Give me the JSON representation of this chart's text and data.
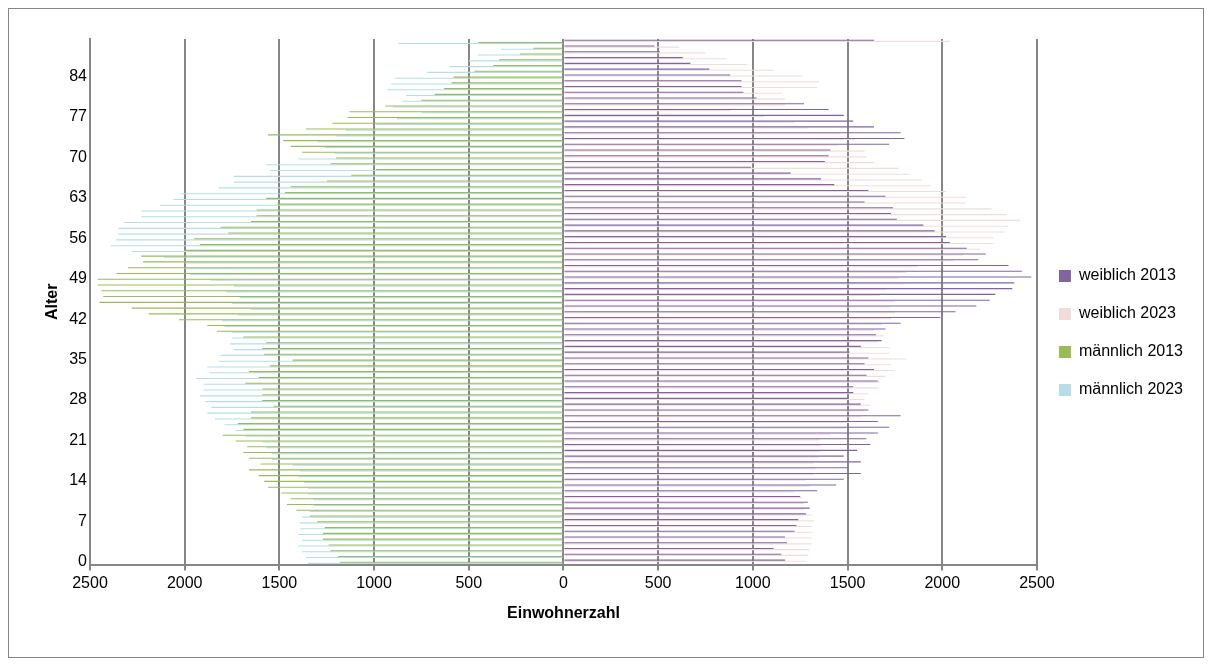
{
  "chart_data": {
    "type": "bar",
    "orientation": "horizontal",
    "xlabel": "Einwohnerzahl",
    "ylabel": "Alter",
    "categories": [
      null,
      null,
      null,
      null,
      null,
      null,
      "84",
      null,
      null,
      null,
      null,
      null,
      null,
      "77",
      null,
      null,
      null,
      null,
      null,
      null,
      "70",
      null,
      null,
      null,
      null,
      null,
      null,
      "63",
      null,
      null,
      null,
      null,
      null,
      null,
      "56",
      null,
      null,
      null,
      null,
      null,
      null,
      "49",
      null,
      null,
      null,
      null,
      null,
      null,
      "42",
      null,
      null,
      null,
      null,
      null,
      null,
      "35",
      null,
      null,
      null,
      null,
      null,
      null,
      "28",
      null,
      null,
      null,
      null,
      null,
      null,
      "21",
      null,
      null,
      null,
      null,
      null,
      null,
      "14",
      null,
      null,
      null,
      null,
      null,
      null,
      "7",
      null,
      null,
      null,
      null,
      null,
      null,
      "0"
    ],
    "series": [
      {
        "name": "weiblich 2013",
        "color": "#8064a2",
        "values": [
          1640,
          480,
          510,
          630,
          670,
          770,
          880,
          940,
          940,
          950,
          1020,
          1270,
          1400,
          1480,
          1530,
          1640,
          1780,
          1800,
          1720,
          1410,
          1400,
          1380,
          990,
          1200,
          1360,
          1430,
          1610,
          1700,
          1590,
          1740,
          1730,
          1760,
          1900,
          1960,
          2020,
          2040,
          2130,
          2230,
          2190,
          2350,
          2420,
          2470,
          2380,
          2370,
          2280,
          2250,
          2180,
          2070,
          1990,
          1780,
          1700,
          1650,
          1680,
          1570,
          1510,
          1610,
          1590,
          1640,
          1600,
          1660,
          1530,
          1530,
          1500,
          1570,
          1610,
          1780,
          1660,
          1720,
          1660,
          1600,
          1620,
          1550,
          1480,
          1570,
          1500,
          1570,
          1480,
          1440,
          1340,
          1250,
          1290,
          1300,
          1280,
          1240,
          1230,
          1220,
          1170,
          1180,
          1110,
          1150,
          1170
        ]
      },
      {
        "name": "weiblich 2023",
        "color": "#f2dcdb",
        "values": [
          2040,
          610,
          750,
          860,
          970,
          1110,
          1260,
          1350,
          1340,
          1150,
          1170,
          1170,
          880,
          1060,
          1220,
          1290,
          1460,
          1540,
          1450,
          1590,
          1600,
          1640,
          1770,
          1830,
          1890,
          1940,
          2020,
          2130,
          2120,
          2260,
          2340,
          2410,
          2350,
          2330,
          2270,
          2270,
          2200,
          2110,
          2060,
          1870,
          1810,
          1770,
          1800,
          1700,
          1670,
          1750,
          1720,
          1750,
          1730,
          1680,
          1640,
          1690,
          1660,
          1720,
          1720,
          1810,
          1730,
          1750,
          1700,
          1670,
          1660,
          1610,
          1590,
          1620,
          1590,
          1570,
          1510,
          1490,
          1410,
          1350,
          1360,
          1360,
          1350,
          1320,
          1330,
          1320,
          1280,
          1300,
          1220,
          1260,
          1270,
          1270,
          1310,
          1320,
          1310,
          1310,
          1310,
          1310,
          1300,
          1290,
          1280
        ]
      },
      {
        "name": "männlich 2013",
        "color": "#9bbb59",
        "values": [
          -450,
          -160,
          -230,
          -340,
          -370,
          -470,
          -580,
          -590,
          -630,
          -680,
          -750,
          -940,
          -1130,
          -1140,
          -1220,
          -1360,
          -1560,
          -1480,
          -1440,
          -1380,
          -1200,
          -1230,
          -990,
          -1120,
          -1250,
          -1440,
          -1470,
          -1570,
          -1510,
          -1620,
          -1620,
          -1650,
          -1810,
          -1770,
          -1950,
          -1920,
          -2000,
          -2230,
          -2220,
          -2300,
          -2360,
          -2460,
          -2460,
          -2440,
          -2430,
          -2450,
          -2280,
          -2190,
          -2030,
          -1880,
          -1830,
          -1690,
          -1570,
          -1590,
          -1580,
          -1430,
          -1550,
          -1660,
          -1610,
          -1680,
          -1590,
          -1590,
          -1590,
          -1530,
          -1650,
          -1650,
          -1720,
          -1690,
          -1800,
          -1730,
          -1670,
          -1690,
          -1660,
          -1600,
          -1660,
          -1610,
          -1580,
          -1560,
          -1490,
          -1440,
          -1460,
          -1410,
          -1340,
          -1300,
          -1260,
          -1270,
          -1270,
          -1240,
          -1230,
          -1190,
          -1180
        ]
      },
      {
        "name": "männlich 2023",
        "color": "#b7dee8",
        "values": [
          -870,
          -330,
          -450,
          -500,
          -600,
          -720,
          -890,
          -910,
          -930,
          -830,
          -850,
          -900,
          -750,
          -880,
          -990,
          -1150,
          -1200,
          -1300,
          -1260,
          -1210,
          -1400,
          -1570,
          -1550,
          -1740,
          -1740,
          -1820,
          -2020,
          -2060,
          -2130,
          -2230,
          -2230,
          -2320,
          -2350,
          -2350,
          -2360,
          -2390,
          -2280,
          -2110,
          -2000,
          -2000,
          -1970,
          -1860,
          -1740,
          -1780,
          -1710,
          -1750,
          -1650,
          -1720,
          -1800,
          -1790,
          -1750,
          -1750,
          -1760,
          -1740,
          -1810,
          -1820,
          -1880,
          -1870,
          -1940,
          -1900,
          -1900,
          -1920,
          -1890,
          -1860,
          -1880,
          -1840,
          -1790,
          -1730,
          -1680,
          -1590,
          -1570,
          -1540,
          -1540,
          -1430,
          -1390,
          -1400,
          -1370,
          -1350,
          -1350,
          -1320,
          -1320,
          -1340,
          -1380,
          -1390,
          -1390,
          -1400,
          -1380,
          -1400,
          -1380,
          -1360,
          -1350
        ]
      }
    ],
    "xlim": [
      -2500,
      2500
    ],
    "xticks": [
      {
        "value": -2500,
        "label": "2500"
      },
      {
        "value": -2000,
        "label": "2000"
      },
      {
        "value": -1500,
        "label": "1500"
      },
      {
        "value": -1000,
        "label": "1000"
      },
      {
        "value": -500,
        "label": "500"
      },
      0,
      500,
      1000,
      1500,
      2000,
      2500
    ],
    "grid": "x",
    "legend": "right"
  }
}
